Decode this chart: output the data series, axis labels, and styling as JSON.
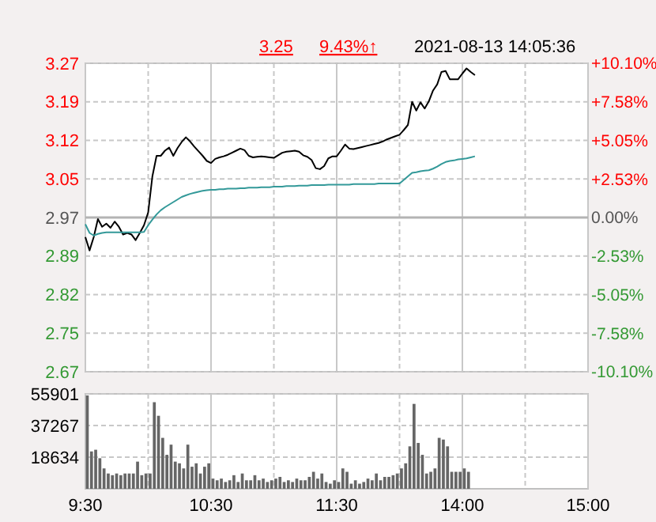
{
  "chart_data": [
    {
      "type": "line",
      "title": "2021-08-13 14:05:36",
      "annotations": [
        "3.25",
        "9.43%↑"
      ],
      "categories": [
        null,
        null,
        null,
        null,
        null,
        null,
        null,
        null,
        null,
        null,
        null,
        null,
        null,
        null,
        null,
        null,
        null,
        null,
        null,
        null,
        null,
        null,
        null,
        null,
        null,
        null,
        null,
        null,
        null,
        null,
        null,
        null,
        null,
        null,
        null,
        null,
        null,
        null,
        null,
        null,
        null,
        null,
        null,
        null,
        null,
        null,
        null,
        null,
        null,
        null,
        null,
        null,
        null,
        null,
        null,
        null,
        null,
        null,
        null,
        null,
        null,
        null,
        null,
        null,
        null,
        null,
        null,
        null,
        null,
        null,
        null,
        null,
        null,
        null,
        null,
        null,
        null,
        null,
        null,
        null,
        null,
        null,
        null,
        null,
        null,
        null,
        null,
        null,
        null,
        null,
        null,
        null,
        null,
        null,
        null,
        null,
        null,
        null,
        null,
        null,
        null,
        null,
        null,
        null,
        null,
        null,
        null,
        null,
        null,
        null,
        null,
        null,
        null,
        null,
        null,
        null,
        null,
        null,
        null,
        null,
        null
      ],
      "series": [
        {
          "color": "#000000",
          "values": [
            2.932,
            2.906,
            2.932,
            2.967,
            2.952,
            2.958,
            2.95,
            2.962,
            2.952,
            2.937,
            2.94,
            2.937,
            2.926,
            2.94,
            2.955,
            2.98,
            3.05,
            3.09,
            3.09,
            3.1,
            3.106,
            3.09,
            3.105,
            3.117,
            3.126,
            3.118,
            3.108,
            3.099,
            3.09,
            3.08,
            3.076,
            3.084,
            3.087,
            3.089,
            3.092,
            3.096,
            3.1,
            3.104,
            3.101,
            3.09,
            3.087,
            3.088,
            3.089,
            3.088,
            3.087,
            3.086,
            3.091,
            3.096,
            3.098,
            3.099,
            3.1,
            3.098,
            3.091,
            3.088,
            3.082,
            3.066,
            3.064,
            3.07,
            3.085,
            3.089,
            3.089,
            3.1,
            3.112,
            3.104,
            3.103,
            3.105,
            3.107,
            3.109,
            3.111,
            3.113,
            3.115,
            3.118,
            3.122,
            3.125,
            3.128,
            3.131,
            3.14,
            3.15,
            3.195,
            3.178,
            3.194,
            3.182,
            3.196,
            3.217,
            3.229,
            3.253,
            3.255,
            3.239,
            3.239,
            3.239,
            3.25,
            3.26,
            3.253,
            3.247,
            null,
            null,
            null,
            null,
            null,
            null,
            null,
            null,
            null,
            null,
            null,
            null,
            null,
            null,
            null,
            null,
            null,
            null,
            null,
            null,
            null,
            null,
            null,
            null,
            null,
            null,
            null
          ]
        },
        {
          "color": "#339999",
          "values": [
            2.957,
            2.94,
            2.935,
            2.938,
            2.94,
            2.941,
            2.941,
            2.941,
            2.941,
            2.941,
            2.941,
            2.941,
            2.941,
            2.941,
            2.942,
            2.955,
            2.966,
            2.976,
            2.984,
            2.99,
            2.995,
            3.0,
            3.005,
            3.01,
            3.013,
            3.016,
            3.018,
            3.02,
            3.022,
            3.023,
            3.024,
            3.024,
            3.025,
            3.025,
            3.026,
            3.026,
            3.026,
            3.027,
            3.027,
            3.028,
            3.028,
            3.028,
            3.029,
            3.029,
            3.029,
            3.03,
            3.03,
            3.03,
            3.031,
            3.031,
            3.031,
            3.032,
            3.032,
            3.032,
            3.033,
            3.033,
            3.033,
            3.033,
            3.034,
            3.034,
            3.034,
            3.034,
            3.034,
            3.034,
            3.035,
            3.035,
            3.035,
            3.035,
            3.035,
            3.035,
            3.036,
            3.036,
            3.036,
            3.036,
            3.036,
            3.036,
            3.043,
            3.05,
            3.057,
            3.058,
            3.06,
            3.061,
            3.062,
            3.065,
            3.069,
            3.074,
            3.078,
            3.08,
            3.081,
            3.083,
            3.084,
            3.085,
            3.087,
            3.089,
            null,
            null,
            null,
            null,
            null,
            null,
            null,
            null,
            null,
            null,
            null,
            null,
            null,
            null,
            null,
            null,
            null,
            null,
            null,
            null,
            null,
            null,
            null,
            null,
            null,
            null,
            null
          ]
        }
      ],
      "ylim": [
        2.67,
        3.27
      ],
      "yticks": [
        2.67,
        {
          "value": 2.745,
          "label": "2.75"
        },
        2.82,
        {
          "value": 2.895,
          "label": "2.89"
        },
        2.97,
        {
          "value": 3.045,
          "label": "3.05"
        },
        3.12,
        {
          "value": 3.195,
          "label": "3.19"
        },
        3.27
      ],
      "y2lim": [
        -10.1,
        10.1
      ],
      "y2ticks": [
        {
          "value": -10.1,
          "label": "-10.10%"
        },
        {
          "value": -7.575,
          "label": "-7.58%"
        },
        {
          "value": -5.05,
          "label": "-5.05%"
        },
        {
          "value": -2.525,
          "label": "-2.53%"
        },
        {
          "value": 0,
          "label": "0.00%"
        },
        {
          "value": 2.525,
          "label": "+2.53%"
        },
        {
          "value": 5.05,
          "label": "+5.05%"
        },
        {
          "value": 7.575,
          "label": "+7.58%"
        },
        {
          "value": 10.1,
          "label": "+10.10%"
        }
      ],
      "ref_lines": [
        {
          "axis": "y2",
          "value": 0,
          "color": "#b4b4b4",
          "line_style": "solid"
        }
      ],
      "grid": true,
      "tick_labels": "y"
    },
    {
      "type": "bar",
      "color": "#666666",
      "categories": [
        "9:30",
        null,
        null,
        null,
        null,
        null,
        null,
        null,
        null,
        null,
        null,
        null,
        null,
        null,
        null,
        null,
        null,
        null,
        null,
        null,
        null,
        null,
        null,
        null,
        null,
        null,
        null,
        null,
        null,
        null,
        "10:30",
        null,
        null,
        null,
        null,
        null,
        null,
        null,
        null,
        null,
        null,
        null,
        null,
        null,
        null,
        null,
        null,
        null,
        null,
        null,
        null,
        null,
        null,
        null,
        null,
        null,
        null,
        null,
        null,
        null,
        "11:30",
        null,
        null,
        null,
        null,
        null,
        null,
        null,
        null,
        null,
        null,
        null,
        null,
        null,
        null,
        null,
        null,
        null,
        null,
        null,
        null,
        null,
        null,
        null,
        null,
        null,
        null,
        null,
        null,
        null,
        "14:00",
        null,
        null,
        null,
        null,
        null,
        null,
        null,
        null,
        null,
        null,
        null,
        null,
        null,
        null,
        null,
        null,
        null,
        null,
        null,
        null,
        null,
        null,
        null,
        null,
        null,
        null,
        null,
        null,
        null,
        "15:00"
      ],
      "values": [
        55000,
        22000,
        23000,
        18000,
        12000,
        9000,
        8000,
        9000,
        8000,
        9000,
        9000,
        9000,
        16000,
        8000,
        9000,
        9000,
        51000,
        43000,
        30000,
        20000,
        26000,
        16000,
        15000,
        12000,
        26000,
        13000,
        15000,
        9000,
        13000,
        15000,
        6000,
        5000,
        6000,
        4000,
        5000,
        8000,
        4000,
        9000,
        5000,
        5000,
        8000,
        5000,
        6000,
        4000,
        5000,
        6000,
        7000,
        4000,
        5000,
        4000,
        6000,
        5000,
        5000,
        7000,
        10000,
        6000,
        9000,
        4000,
        3000,
        5000,
        4000,
        12000,
        10000,
        3000,
        5000,
        3000,
        4000,
        6000,
        5000,
        9000,
        5000,
        7000,
        7000,
        8000,
        9000,
        12000,
        15000,
        25000,
        50000,
        27000,
        20000,
        9000,
        10000,
        12000,
        30000,
        29000,
        25000,
        10000,
        10000,
        10000,
        12000,
        10000,
        null,
        null,
        null,
        null,
        null,
        null,
        null,
        null,
        null,
        null,
        null,
        null,
        null,
        null,
        null,
        null,
        null,
        null,
        null,
        null,
        null,
        null,
        null,
        null,
        null,
        null,
        null,
        null,
        null
      ],
      "ylim": [
        0,
        55901
      ],
      "yticks": [
        18634,
        37267,
        55901
      ],
      "grid": true
    }
  ]
}
